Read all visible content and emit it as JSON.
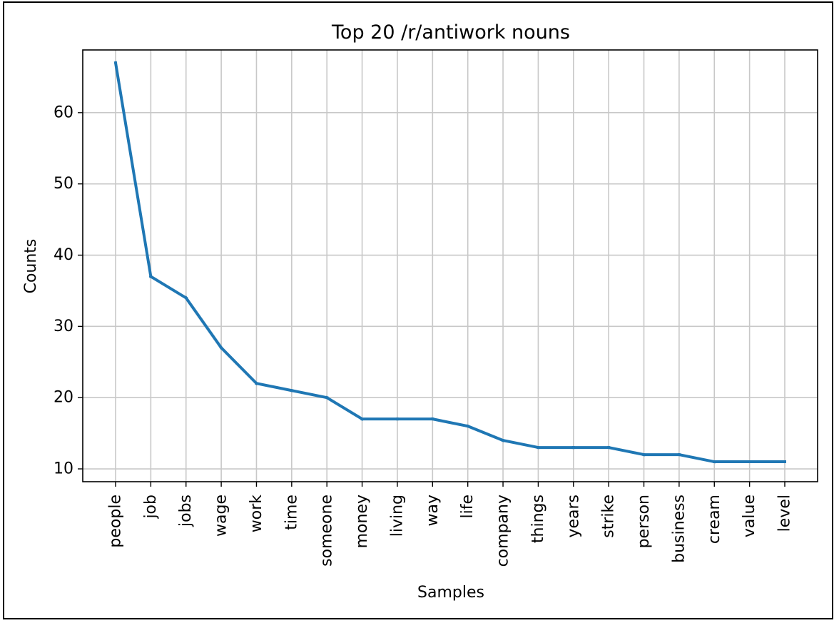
{
  "chart_data": {
    "type": "line",
    "title": "Top 20 /r/antiwork nouns",
    "xlabel": "Samples",
    "ylabel": "Counts",
    "categories": [
      "people",
      "job",
      "jobs",
      "wage",
      "work",
      "time",
      "someone",
      "money",
      "living",
      "way",
      "life",
      "company",
      "things",
      "years",
      "strike",
      "person",
      "business",
      "cream",
      "value",
      "level"
    ],
    "values": [
      67,
      37,
      34,
      27,
      22,
      21,
      20,
      17,
      17,
      17,
      16,
      14,
      13,
      13,
      13,
      12,
      12,
      11,
      11,
      11
    ],
    "yticks": [
      10,
      20,
      30,
      40,
      50,
      60
    ],
    "ylim": [
      8.2,
      68.8
    ],
    "grid": true,
    "line_color": "#1f77b4"
  }
}
